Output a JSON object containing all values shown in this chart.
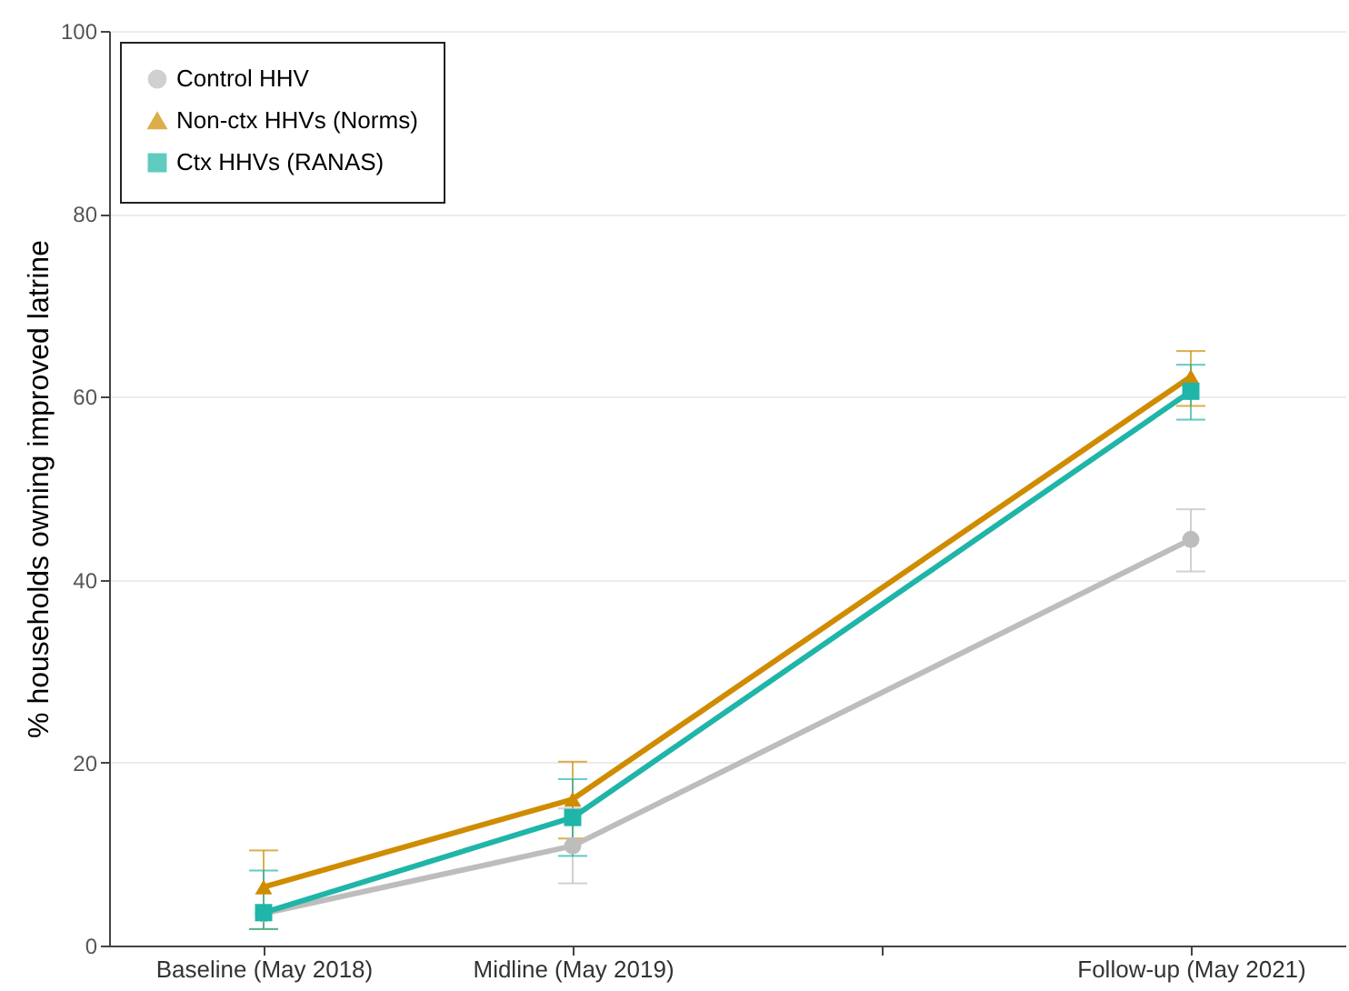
{
  "chart_data": {
    "type": "line",
    "ylabel": "% households owning improved latrine",
    "categories": [
      "Baseline (May 2018)",
      "Midline (May 2019)",
      null,
      "Follow-up (May 2021)"
    ],
    "ylim": [
      0,
      100
    ],
    "yticks": [
      0,
      20,
      40,
      60,
      80,
      100
    ],
    "grid": "y",
    "legend": "top left",
    "line_style": "solid",
    "series": [
      {
        "name": "Control HHV",
        "color": "#bdbdbd",
        "marker": "circle",
        "values": [
          3.5,
          10.9,
          null,
          44.4
        ],
        "errors": [
          null,
          [
            6.8,
            15.0
          ],
          null,
          [
            40.9,
            47.7
          ]
        ]
      },
      {
        "name": "Non-ctx HHVs (Norms)",
        "color": "#d08c00",
        "marker": "triangle",
        "values": [
          6.4,
          16.0,
          null,
          62.2
        ],
        "errors": [
          [
            1.8,
            10.4
          ],
          [
            11.7,
            20.1
          ],
          null,
          [
            59.0,
            65.0
          ]
        ]
      },
      {
        "name": "Ctx HHVs (RANAS)",
        "color": "#1fb5a8",
        "marker": "square",
        "values": [
          3.6,
          14.0,
          null,
          60.6
        ],
        "errors": [
          [
            1.8,
            8.2
          ],
          [
            9.8,
            18.2
          ],
          null,
          [
            57.5,
            63.5
          ]
        ]
      }
    ]
  }
}
